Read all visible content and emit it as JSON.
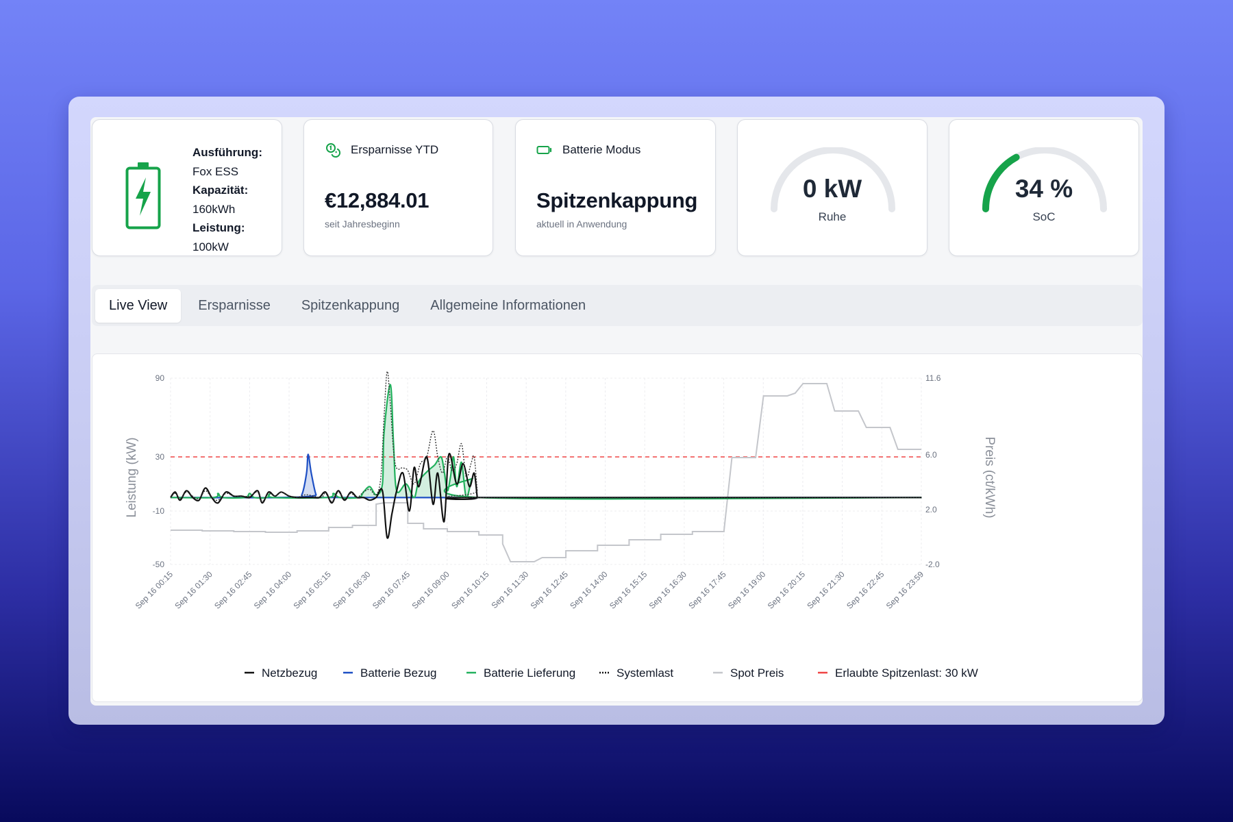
{
  "colors": {
    "accent_green": "#16a34a",
    "chart_green": "#22b15d",
    "chart_blue": "#1d4fc4",
    "chart_black": "#111111",
    "chart_gray": "#c4c6cb",
    "limit_red": "#ef4444"
  },
  "battery_info": {
    "icon": "battery-charging-icon",
    "items": [
      {
        "label": "Ausführung:",
        "value": "Fox ESS"
      },
      {
        "label": "Kapazität:",
        "value": "160kWh"
      },
      {
        "label": "Leistung:",
        "value": "100kW"
      }
    ]
  },
  "savings": {
    "icon": "coins-icon",
    "title": "Ersparnisse YTD",
    "value": "€12,884.01",
    "subtitle": "seit Jahresbeginn"
  },
  "mode": {
    "icon": "battery-icon",
    "title": "Batterie Modus",
    "value": "Spitzenkappung",
    "subtitle": "aktuell in Anwendung"
  },
  "power_gauge": {
    "value": "0 kW",
    "label": "Ruhe",
    "fraction": 0
  },
  "soc_gauge": {
    "value": "34 %",
    "label": "SoC",
    "fraction": 0.34
  },
  "tabs": [
    {
      "label": "Live View",
      "active": true
    },
    {
      "label": "Ersparnisse",
      "active": false
    },
    {
      "label": "Spitzenkappung",
      "active": false
    },
    {
      "label": "Allgemeine Informationen",
      "active": false
    }
  ],
  "chart_data": {
    "type": "line",
    "ylabel": "Leistung (kW)",
    "y2label": "Preis (ct/kWh)",
    "y_ticks": [
      "90",
      "30",
      "-10",
      "-50"
    ],
    "y2_ticks": [
      "11.6",
      "6.0",
      "2.0",
      "-2.0"
    ],
    "x_ticks": [
      "Sep 16 00:15",
      "Sep 16 01:30",
      "Sep 16 02:45",
      "Sep 16 04:00",
      "Sep 16 05:15",
      "Sep 16 06:30",
      "Sep 16 07:45",
      "Sep 16 09:00",
      "Sep 16 10:15",
      "Sep 16 11:30",
      "Sep 16 12:45",
      "Sep 16 14:00",
      "Sep 16 15:15",
      "Sep 16 16:30",
      "Sep 16 17:45",
      "Sep 16 19:00",
      "Sep 16 20:15",
      "Sep 16 21:30",
      "Sep 16 22:45",
      "Sep 16 23:59"
    ],
    "x_unit": "hours",
    "grid": true,
    "limit": {
      "name": "Erlaubte Spitzenlast: 30 kW",
      "value": 30
    },
    "series": [
      {
        "name": "Netzbezug",
        "key": "netz",
        "points": [
          [
            0.25,
            0
          ],
          [
            0.4,
            4
          ],
          [
            0.55,
            -2
          ],
          [
            0.75,
            5
          ],
          [
            0.95,
            0
          ],
          [
            1.15,
            -2
          ],
          [
            1.35,
            7
          ],
          [
            1.55,
            0
          ],
          [
            1.75,
            -4
          ],
          [
            2.0,
            4
          ],
          [
            2.25,
            1
          ],
          [
            2.5,
            1
          ],
          [
            2.75,
            0
          ],
          [
            3.0,
            5
          ],
          [
            3.15,
            -4
          ],
          [
            3.35,
            4
          ],
          [
            3.55,
            1
          ],
          [
            3.75,
            4
          ],
          [
            4.0,
            1
          ],
          [
            4.25,
            0
          ],
          [
            4.55,
            0
          ],
          [
            4.75,
            0
          ],
          [
            4.95,
            0
          ],
          [
            5.15,
            4
          ],
          [
            5.35,
            -4
          ],
          [
            5.55,
            5
          ],
          [
            5.75,
            -2
          ],
          [
            5.95,
            4
          ],
          [
            6.15,
            0
          ],
          [
            6.35,
            0
          ],
          [
            6.55,
            -2
          ],
          [
            6.75,
            0
          ],
          [
            6.95,
            5
          ],
          [
            7.1,
            -30
          ],
          [
            7.25,
            -12
          ],
          [
            7.4,
            5
          ],
          [
            7.6,
            18
          ],
          [
            7.8,
            -10
          ],
          [
            7.95,
            22
          ],
          [
            8.1,
            8
          ],
          [
            8.35,
            30
          ],
          [
            8.55,
            -5
          ],
          [
            8.7,
            18
          ],
          [
            8.9,
            -18
          ],
          [
            9.05,
            32
          ],
          [
            9.3,
            10
          ],
          [
            9.5,
            25
          ],
          [
            9.7,
            8
          ],
          [
            9.85,
            18
          ],
          [
            9.95,
            0
          ],
          [
            10.0,
            0
          ],
          [
            24.0,
            0
          ]
        ]
      },
      {
        "name": "Batterie Bezug",
        "key": "bezug",
        "points": [
          [
            0.25,
            0
          ],
          [
            4.2,
            0
          ],
          [
            4.4,
            2
          ],
          [
            4.55,
            18
          ],
          [
            4.6,
            32
          ],
          [
            4.7,
            18
          ],
          [
            4.85,
            2
          ],
          [
            5.0,
            0
          ],
          [
            24.0,
            0
          ]
        ]
      },
      {
        "name": "Batterie Lieferung",
        "key": "lief",
        "points": [
          [
            0.25,
            0
          ],
          [
            1.6,
            0
          ],
          [
            1.75,
            3
          ],
          [
            1.9,
            0
          ],
          [
            2.6,
            0
          ],
          [
            2.75,
            3
          ],
          [
            2.9,
            0
          ],
          [
            3.3,
            0
          ],
          [
            3.4,
            3
          ],
          [
            3.5,
            0
          ],
          [
            5.2,
            0
          ],
          [
            5.4,
            3
          ],
          [
            5.6,
            0
          ],
          [
            6.2,
            0
          ],
          [
            6.35,
            4
          ],
          [
            6.55,
            8
          ],
          [
            6.75,
            2
          ],
          [
            6.95,
            10
          ],
          [
            7.0,
            48
          ],
          [
            7.2,
            85
          ],
          [
            7.3,
            40
          ],
          [
            7.4,
            5
          ],
          [
            7.7,
            10
          ],
          [
            7.95,
            0
          ],
          [
            8.1,
            12
          ],
          [
            8.4,
            20
          ],
          [
            8.6,
            24
          ],
          [
            8.8,
            30
          ],
          [
            8.9,
            20
          ],
          [
            9.0,
            5
          ],
          [
            9.1,
            15
          ],
          [
            9.2,
            30
          ],
          [
            9.3,
            8
          ],
          [
            9.45,
            26
          ],
          [
            9.6,
            0
          ],
          [
            9.8,
            14
          ],
          [
            10.0,
            0
          ],
          [
            24.0,
            0
          ]
        ]
      },
      {
        "name": "Systemlast",
        "key": "last",
        "points": [
          [
            0.25,
            0
          ],
          [
            0.4,
            3
          ],
          [
            0.55,
            -1
          ],
          [
            0.75,
            4
          ],
          [
            0.95,
            1
          ],
          [
            1.15,
            -1
          ],
          [
            1.35,
            5
          ],
          [
            1.55,
            0
          ],
          [
            1.75,
            -2
          ],
          [
            2.0,
            3
          ],
          [
            2.25,
            1
          ],
          [
            2.5,
            1
          ],
          [
            2.75,
            1
          ],
          [
            3.0,
            4
          ],
          [
            3.15,
            -3
          ],
          [
            3.35,
            3
          ],
          [
            3.55,
            1
          ],
          [
            3.75,
            4
          ],
          [
            4.0,
            1
          ],
          [
            4.25,
            0
          ],
          [
            4.55,
            2
          ],
          [
            5.0,
            0
          ],
          [
            5.15,
            3
          ],
          [
            5.35,
            -3
          ],
          [
            5.55,
            4
          ],
          [
            5.75,
            -1
          ],
          [
            5.95,
            3
          ],
          [
            6.15,
            0
          ],
          [
            6.35,
            4
          ],
          [
            6.55,
            6
          ],
          [
            6.75,
            2
          ],
          [
            6.9,
            15
          ],
          [
            7.0,
            60
          ],
          [
            7.1,
            95
          ],
          [
            7.2,
            70
          ],
          [
            7.35,
            25
          ],
          [
            7.6,
            22
          ],
          [
            7.75,
            20
          ],
          [
            7.95,
            10
          ],
          [
            8.15,
            25
          ],
          [
            8.35,
            30
          ],
          [
            8.55,
            50
          ],
          [
            8.7,
            30
          ],
          [
            8.85,
            18
          ],
          [
            9.0,
            30
          ],
          [
            9.15,
            20
          ],
          [
            9.3,
            25
          ],
          [
            9.45,
            40
          ],
          [
            9.6,
            15
          ],
          [
            9.75,
            25
          ],
          [
            9.85,
            30
          ],
          [
            9.95,
            5
          ],
          [
            10.0,
            0
          ],
          [
            24.0,
            0
          ]
        ]
      },
      {
        "name": "Spot Preis",
        "key": "spot",
        "axis": "price",
        "points": [
          [
            0.25,
            0.5
          ],
          [
            1.25,
            0.5
          ],
          [
            1.25,
            0.45
          ],
          [
            2.25,
            0.45
          ],
          [
            2.25,
            0.4
          ],
          [
            3.25,
            0.4
          ],
          [
            3.25,
            0.35
          ],
          [
            4.25,
            0.35
          ],
          [
            4.25,
            0.45
          ],
          [
            5.25,
            0.45
          ],
          [
            5.25,
            0.7
          ],
          [
            6.0,
            0.7
          ],
          [
            6.0,
            0.85
          ],
          [
            6.75,
            0.85
          ],
          [
            6.75,
            2.4
          ],
          [
            7.0,
            2.5
          ],
          [
            7.75,
            2.5
          ],
          [
            7.75,
            1.0
          ],
          [
            8.25,
            1.0
          ],
          [
            8.25,
            0.6
          ],
          [
            9.0,
            0.6
          ],
          [
            9.0,
            0.4
          ],
          [
            10.0,
            0.4
          ],
          [
            10.0,
            0.15
          ],
          [
            10.75,
            0.15
          ],
          [
            10.75,
            -0.5
          ],
          [
            11.0,
            -1.8
          ],
          [
            11.75,
            -1.8
          ],
          [
            12.0,
            -1.5
          ],
          [
            12.75,
            -1.5
          ],
          [
            12.75,
            -1.0
          ],
          [
            13.75,
            -1.0
          ],
          [
            13.75,
            -0.6
          ],
          [
            14.75,
            -0.6
          ],
          [
            14.75,
            -0.2
          ],
          [
            15.75,
            -0.2
          ],
          [
            15.75,
            0.2
          ],
          [
            16.75,
            0.2
          ],
          [
            16.75,
            0.4
          ],
          [
            17.75,
            0.4
          ],
          [
            17.75,
            0.45
          ],
          [
            18.0,
            5.8
          ],
          [
            18.75,
            5.8
          ],
          [
            19.0,
            10.3
          ],
          [
            19.75,
            10.3
          ],
          [
            20.0,
            10.5
          ],
          [
            20.25,
            11.2
          ],
          [
            21.0,
            11.2
          ],
          [
            21.25,
            9.2
          ],
          [
            22.0,
            9.2
          ],
          [
            22.25,
            8.0
          ],
          [
            23.0,
            8.0
          ],
          [
            23.25,
            6.4
          ],
          [
            23.99,
            6.4
          ]
        ]
      }
    ],
    "legend": [
      {
        "name": "Netzbezug",
        "color": "#111111",
        "style": "solid"
      },
      {
        "name": "Batterie Bezug",
        "color": "#1d4fc4",
        "style": "solid"
      },
      {
        "name": "Batterie Lieferung",
        "color": "#22b15d",
        "style": "solid"
      },
      {
        "name": "Systemlast",
        "color": "#111111",
        "style": "dotted"
      },
      {
        "name": "Spot Preis",
        "color": "#c4c6cb",
        "style": "solid"
      },
      {
        "name": "Erlaubte Spitzenlast: 30 kW",
        "color": "#ef4444",
        "style": "solid"
      }
    ]
  }
}
